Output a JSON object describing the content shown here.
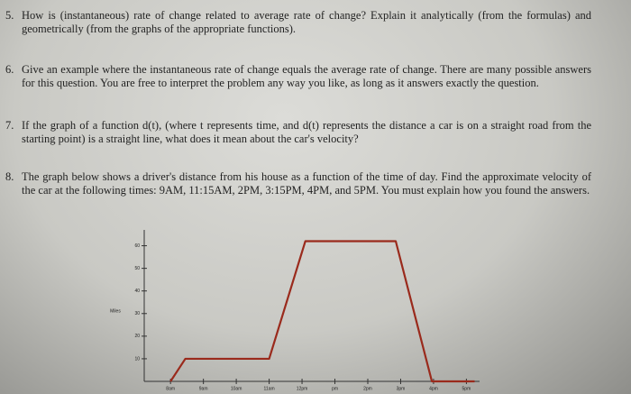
{
  "questions": [
    {
      "number": "5.",
      "text": "How is (instantaneous) rate of change related to average rate of change? Explain it analytically (from the formulas) and geometrically (from the graphs of the appropriate functions)."
    },
    {
      "number": "6.",
      "text": "Give an example where the instantaneous rate of change equals the average rate of change. There are many possible answers for this question. You are free to interpret the problem any way you like, as long as it answers exactly the question."
    },
    {
      "number": "7.",
      "text": "If the graph of a function d(t), (where t represents time, and d(t) represents the distance a car is on a straight road from the starting point) is a straight line, what does it mean about the car's velocity?"
    },
    {
      "number": "8.",
      "text": "The graph below shows a driver's distance from his house as a function of the time of day. Find the approximate velocity of the car at the following times: 9AM, 11:15AM, 2PM, 3:15PM, 4PM, and 5PM. You must explain how you found the answers."
    }
  ],
  "chart_data": {
    "type": "line",
    "y_label": "Miles",
    "x": [
      8,
      8.45,
      11,
      12.1,
      14.85,
      15.95,
      17.25
    ],
    "values": [
      0,
      10,
      10,
      62,
      62,
      0,
      0
    ],
    "color": "#9a2a1c",
    "xlim": [
      7.2,
      17.4
    ],
    "ylim": [
      0,
      67
    ],
    "xticks": [
      {
        "value": 8,
        "label": "8am"
      },
      {
        "value": 9,
        "label": "9am"
      },
      {
        "value": 10,
        "label": "10am"
      },
      {
        "value": 11,
        "label": "11am"
      },
      {
        "value": 12,
        "label": "12pm"
      },
      {
        "value": 13,
        "label": "pm"
      },
      {
        "value": 14,
        "label": "2pm"
      },
      {
        "value": 15,
        "label": "3pm"
      },
      {
        "value": 16,
        "label": "4pm"
      },
      {
        "value": 17,
        "label": "5pm"
      }
    ],
    "yticks": [
      10,
      20,
      30,
      40,
      50,
      60
    ]
  }
}
